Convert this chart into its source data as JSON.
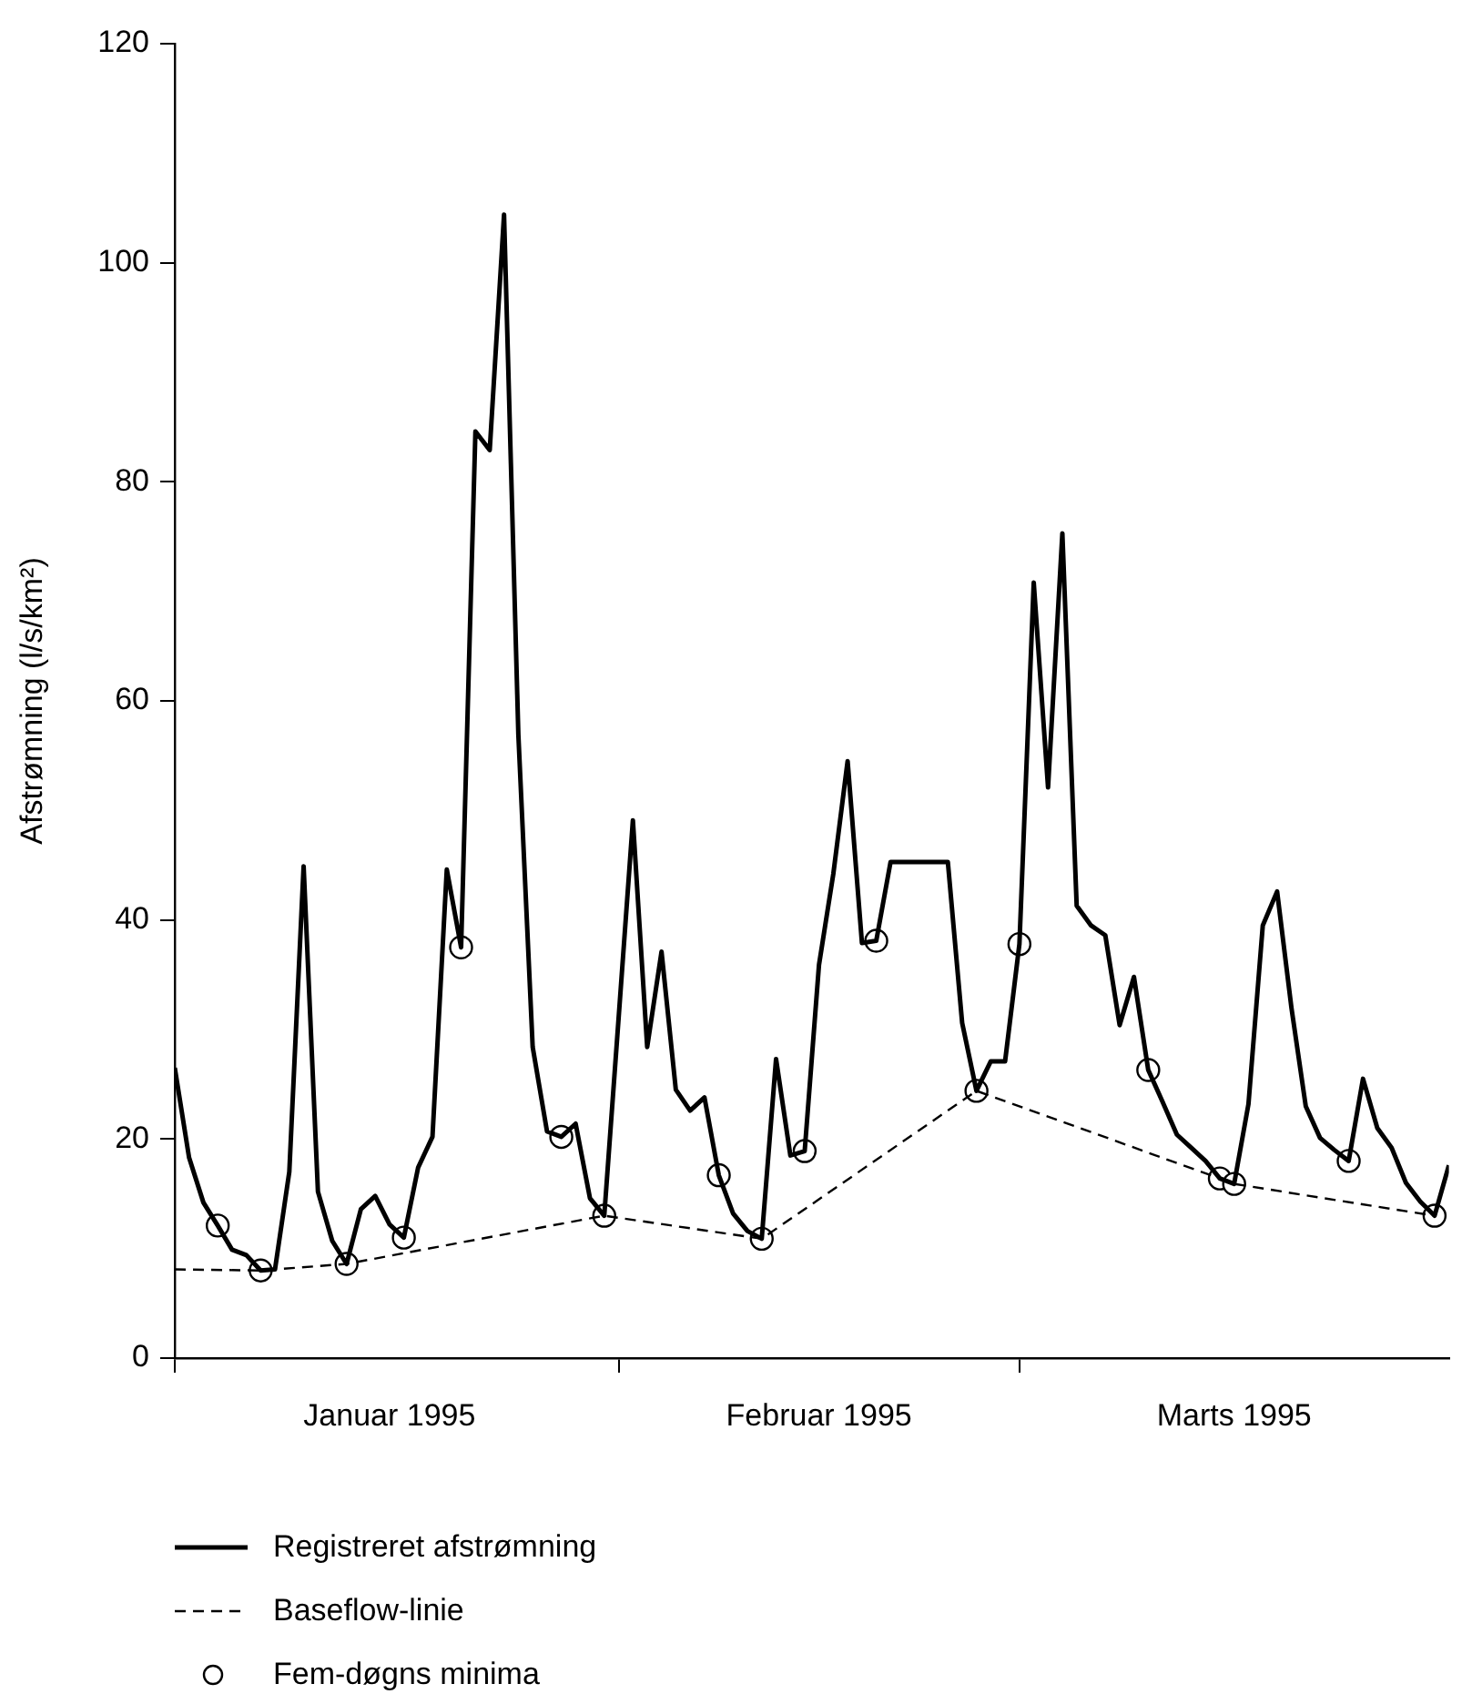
{
  "chart_data": {
    "type": "line",
    "ylabel": "Afstrømning (l/s/km²)",
    "x": [
      "1995-01-01",
      "1995-01-02",
      "1995-01-03",
      "1995-01-04",
      "1995-01-05",
      "1995-01-06",
      "1995-01-07",
      "1995-01-08",
      "1995-01-09",
      "1995-01-10",
      "1995-01-11",
      "1995-01-12",
      "1995-01-13",
      "1995-01-14",
      "1995-01-15",
      "1995-01-16",
      "1995-01-17",
      "1995-01-18",
      "1995-01-19",
      "1995-01-20",
      "1995-01-21",
      "1995-01-22",
      "1995-01-23",
      "1995-01-24",
      "1995-01-25",
      "1995-01-26",
      "1995-01-27",
      "1995-01-28",
      "1995-01-29",
      "1995-01-30",
      "1995-01-31",
      "1995-02-01",
      "1995-02-02",
      "1995-02-03",
      "1995-02-04",
      "1995-02-05",
      "1995-02-06",
      "1995-02-07",
      "1995-02-08",
      "1995-02-09",
      "1995-02-10",
      "1995-02-11",
      "1995-02-12",
      "1995-02-13",
      "1995-02-14",
      "1995-02-15",
      "1995-02-16",
      "1995-02-17",
      "1995-02-18",
      "1995-02-19",
      "1995-02-20",
      "1995-02-21",
      "1995-02-22",
      "1995-02-23",
      "1995-02-24",
      "1995-02-25",
      "1995-02-26",
      "1995-02-27",
      "1995-02-28",
      "1995-03-01",
      "1995-03-02",
      "1995-03-03",
      "1995-03-04",
      "1995-03-05",
      "1995-03-06",
      "1995-03-07",
      "1995-03-08",
      "1995-03-09",
      "1995-03-10",
      "1995-03-11",
      "1995-03-12",
      "1995-03-13",
      "1995-03-14",
      "1995-03-15",
      "1995-03-16",
      "1995-03-17",
      "1995-03-18",
      "1995-03-19",
      "1995-03-20",
      "1995-03-21",
      "1995-03-22",
      "1995-03-23",
      "1995-03-24",
      "1995-03-25",
      "1995-03-26",
      "1995-03-27",
      "1995-03-28",
      "1995-03-29",
      "1995-03-30",
      "1995-03-31"
    ],
    "series": [
      {
        "name": "Registreret afstrømning",
        "color": "#000000",
        "line_style": "solid",
        "marker": "none",
        "values": [
          26.5,
          18.3,
          14.2,
          12.1,
          9.9,
          9.4,
          8.0,
          8.1,
          17.0,
          44.9,
          15.2,
          10.7,
          8.6,
          13.6,
          14.8,
          12.2,
          11.0,
          17.4,
          20.2,
          44.6,
          37.5,
          84.6,
          82.9,
          104.4,
          56.9,
          28.4,
          20.7,
          20.2,
          21.4,
          14.6,
          13.0,
          31.0,
          49.1,
          28.4,
          37.1,
          24.5,
          22.6,
          23.8,
          16.7,
          13.2,
          11.6,
          10.9,
          27.3,
          18.5,
          18.9,
          35.9,
          44.2,
          54.5,
          37.9,
          38.1,
          45.3,
          45.3,
          45.3,
          45.3,
          45.3,
          30.6,
          24.4,
          27.1,
          27.1,
          37.8,
          70.8,
          52.1,
          75.3,
          41.3,
          39.5,
          38.6,
          30.4,
          34.8,
          26.3,
          23.4,
          20.4,
          19.2,
          18.0,
          16.4,
          15.9,
          23.2,
          39.5,
          42.6,
          32.0,
          23.0,
          20.1,
          19.0,
          18.0,
          25.5,
          21.0,
          19.2,
          16.0,
          14.3,
          13.0,
          17.6
        ]
      },
      {
        "name": "Baseflow-linie",
        "color": "#000000",
        "line_style": "dashed",
        "marker": "none",
        "x": [
          "1995-01-01",
          "1995-01-07",
          "1995-01-13",
          "1995-01-31",
          "1995-02-11",
          "1995-02-26",
          "1995-03-15",
          "1995-03-16",
          "1995-03-30"
        ],
        "values": [
          8.1,
          8.0,
          8.6,
          13.0,
          10.9,
          24.4,
          16.4,
          15.9,
          13.0
        ]
      },
      {
        "name": "Fem-døgns minima",
        "type": "scatter",
        "color": "#000000",
        "marker": "circle",
        "x": [
          "1995-01-04",
          "1995-01-07",
          "1995-01-13",
          "1995-01-17",
          "1995-01-21",
          "1995-01-28",
          "1995-01-31",
          "1995-02-08",
          "1995-02-11",
          "1995-02-14",
          "1995-02-19",
          "1995-02-26",
          "1995-03-01",
          "1995-03-10",
          "1995-03-15",
          "1995-03-16",
          "1995-03-24",
          "1995-03-30"
        ],
        "values": [
          12.1,
          8.0,
          8.6,
          11.0,
          37.5,
          20.2,
          13.0,
          16.7,
          10.9,
          18.9,
          38.1,
          24.4,
          37.8,
          26.3,
          16.4,
          15.9,
          18.0,
          13.0
        ]
      }
    ],
    "xlim": [
      "1995-01-01",
      "1995-03-31"
    ],
    "xticks": [
      {
        "value": "1995-01-01",
        "label": null
      },
      {
        "value": "1995-02-01",
        "label": null
      },
      {
        "value": "1995-03-01",
        "label": null
      },
      {
        "value": "1995-01-16",
        "label": "Januar 1995"
      },
      {
        "value": "1995-02-15",
        "label": "Februar 1995"
      },
      {
        "value": "1995-03-16",
        "label": "Marts 1995"
      }
    ],
    "ylim": [
      0,
      120
    ],
    "yticks": [
      0,
      20,
      40,
      60,
      80,
      100,
      120
    ],
    "grid": false,
    "legend": "bottom"
  }
}
